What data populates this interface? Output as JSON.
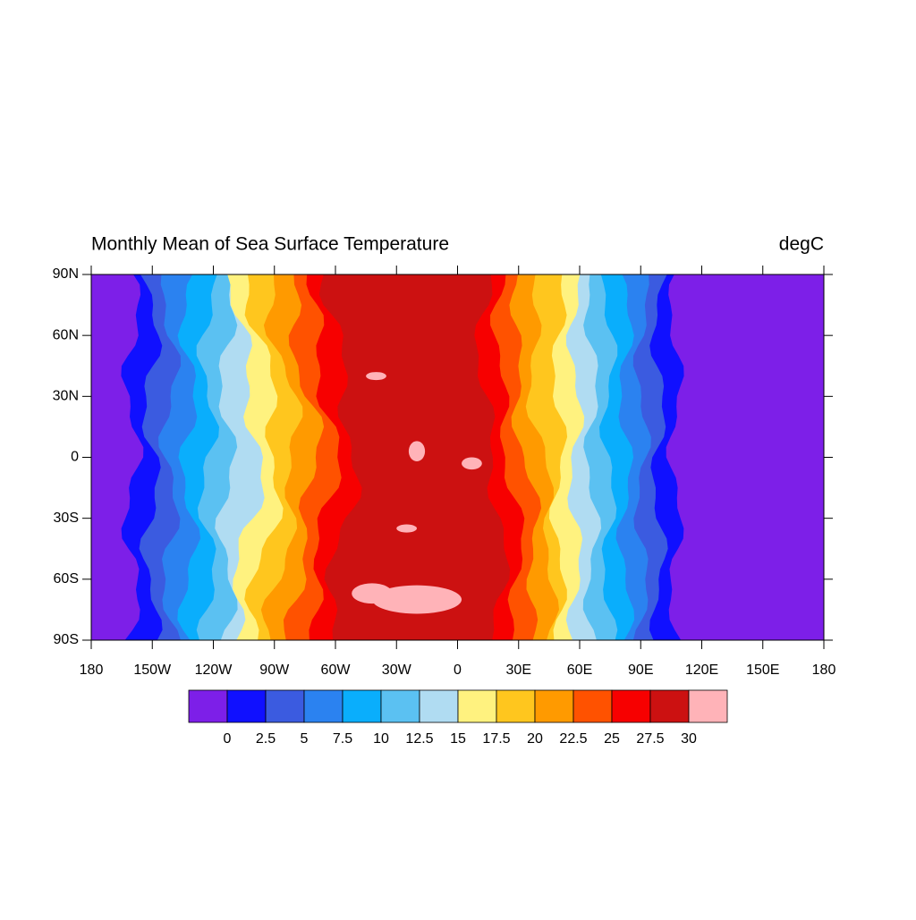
{
  "title": "Monthly Mean of Sea Surface Temperature",
  "units": "degC",
  "xlim": [
    -180,
    180
  ],
  "ylim": [
    -90,
    90
  ],
  "xticks": [
    {
      "value": -180,
      "label": "180"
    },
    {
      "value": -150,
      "label": "150W"
    },
    {
      "value": -120,
      "label": "120W"
    },
    {
      "value": -90,
      "label": "90W"
    },
    {
      "value": -60,
      "label": "60W"
    },
    {
      "value": -30,
      "label": "30W"
    },
    0,
    {
      "value": 30,
      "label": "30E"
    },
    {
      "value": 60,
      "label": "60E"
    },
    {
      "value": 90,
      "label": "90E"
    },
    {
      "value": 120,
      "label": "120E"
    },
    {
      "value": 150,
      "label": "150E"
    },
    180
  ],
  "yticks": [
    {
      "value": -90,
      "label": "90S"
    },
    {
      "value": -60,
      "label": "60S"
    },
    {
      "value": -30,
      "label": "30S"
    },
    0,
    {
      "value": 30,
      "label": "30N"
    },
    {
      "value": 60,
      "label": "60N"
    },
    {
      "value": 90,
      "label": "90N"
    }
  ],
  "colorbar": {
    "levels": [
      0,
      2.5,
      5,
      7.5,
      10,
      12.5,
      15,
      17.5,
      20,
      22.5,
      25,
      27.5,
      30
    ],
    "colors": [
      "#7d1fe8",
      "#1010ff",
      "#3b5be0",
      "#2b82f0",
      "#0aaefc",
      "#5bc1f2",
      "#b0dcf2",
      "#fff27f",
      "#ffc61e",
      "#ff9a00",
      "#ff5200",
      "#f70000",
      "#cc1111",
      "#ffb3b8"
    ]
  }
}
